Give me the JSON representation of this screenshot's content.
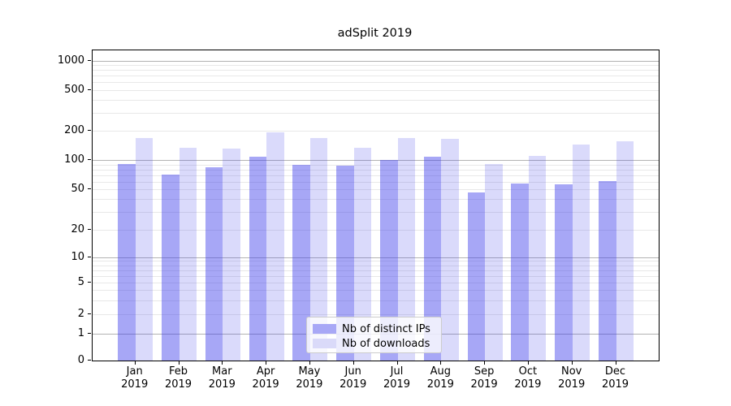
{
  "chart_data": {
    "type": "bar",
    "title": "adSplit 2019",
    "x_tick_labels": [
      [
        "Jan",
        "2019"
      ],
      [
        "Feb",
        "2019"
      ],
      [
        "Mar",
        "2019"
      ],
      [
        "Apr",
        "2019"
      ],
      [
        "May",
        "2019"
      ],
      [
        "Jun",
        "2019"
      ],
      [
        "Jul",
        "2019"
      ],
      [
        "Aug",
        "2019"
      ],
      [
        "Sep",
        "2019"
      ],
      [
        "Oct",
        "2019"
      ],
      [
        "Nov",
        "2019"
      ],
      [
        "Dec",
        "2019"
      ]
    ],
    "series": [
      {
        "name": "Nb of distinct IPs",
        "legend_color": "#a8a8f6",
        "fill_rgba": "rgba(60,60,235,0.45)",
        "values": [
          91,
          71,
          84,
          108,
          90,
          87,
          100,
          109,
          47,
          58,
          57,
          61
        ]
      },
      {
        "name": "Nb of downloads",
        "legend_color": "#dadaf9",
        "fill_rgba": "rgba(60,60,235,0.19)",
        "values": [
          170,
          134,
          132,
          195,
          168,
          135,
          170,
          167,
          92,
          110,
          144,
          156
        ]
      }
    ],
    "yscale": "symlog",
    "yticks": [
      0,
      1,
      2,
      5,
      10,
      20,
      50,
      100,
      200,
      500,
      1000
    ],
    "ylim": [
      0,
      1270
    ],
    "grid": "on",
    "legend_position": "lower center",
    "colors": {
      "major_gridline": "#b3b3b3",
      "minor_gridline": "#e8e8e8",
      "axis": "#000000",
      "legend_border": "#cccccc"
    }
  }
}
